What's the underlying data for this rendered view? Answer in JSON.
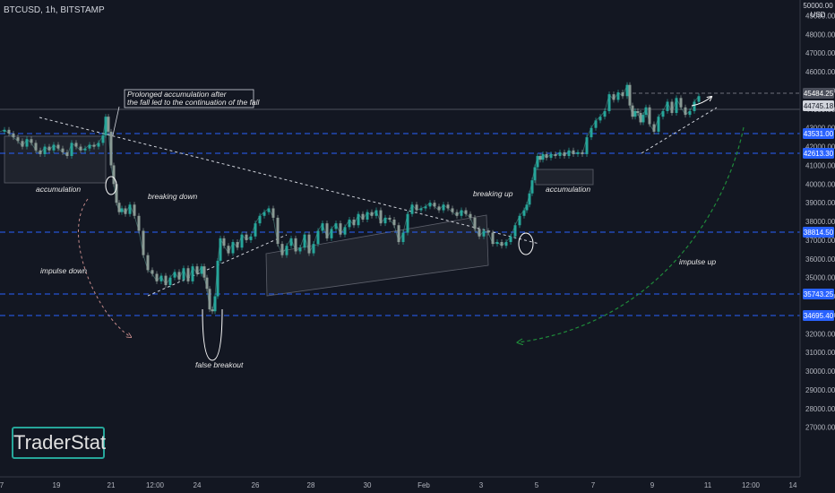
{
  "header": {
    "symbol": "BTCUSD, 1h, BITSTAMP",
    "currency_line1": "50000.00",
    "currency_line2": "USD"
  },
  "brand": {
    "text": "TraderStat"
  },
  "chart_data": {
    "type": "line",
    "xlabel": "",
    "ylabel": "",
    "ylim": [
      27000,
      50000
    ],
    "grid": false,
    "y_ticks": [
      49000,
      48000,
      47000,
      46000,
      45000,
      44000,
      43000,
      42000,
      41000,
      40000,
      39000,
      38000,
      37000,
      36000,
      35000,
      34000,
      33000,
      32000,
      31000,
      30000,
      29000,
      28000,
      27000
    ],
    "x_ticks": [
      "7",
      "19",
      "21",
      "12:00",
      "24",
      "26",
      "28",
      "30",
      "Feb",
      "3",
      "5",
      "7",
      "9",
      "11",
      "12:00",
      "14"
    ],
    "series": [
      {
        "x": [
          0,
          5,
          10,
          15,
          20,
          25,
          30,
          35,
          40,
          45,
          50,
          55,
          60,
          65,
          70,
          75,
          80,
          85,
          90,
          95,
          100,
          105,
          110,
          115,
          118,
          121,
          124,
          127,
          130,
          133,
          136,
          140,
          145,
          150,
          155,
          160,
          165,
          170,
          175,
          180,
          185,
          190,
          195,
          200,
          205,
          210,
          215,
          220,
          225,
          228,
          231,
          234,
          237,
          240,
          243,
          246,
          250,
          255,
          260,
          265,
          270,
          275,
          280,
          285,
          290,
          295,
          300,
          305,
          310,
          315,
          320,
          325,
          330,
          335,
          340,
          345,
          350,
          355,
          360,
          365,
          370,
          375,
          380,
          385,
          390,
          395,
          400,
          405,
          410,
          415,
          420,
          425,
          430,
          435,
          440,
          445,
          450,
          455,
          460,
          465,
          470,
          475,
          480,
          485,
          490,
          495,
          500,
          505,
          510,
          515,
          520,
          525,
          530,
          535,
          540,
          545,
          550,
          555,
          560,
          565,
          570,
          575,
          580,
          585,
          588,
          591,
          594,
          597,
          600,
          603,
          606,
          610,
          615,
          620,
          625,
          630,
          635,
          640,
          645,
          650,
          655,
          660,
          665,
          670,
          675,
          680,
          685,
          690,
          695,
          700,
          703,
          706,
          709,
          712,
          715,
          718,
          721,
          725,
          730,
          735,
          740,
          745,
          750,
          755,
          760,
          765,
          770,
          775,
          780
        ],
        "y": [
          42800,
          42900,
          42700,
          42500,
          42300,
          42000,
          42400,
          42200,
          41800,
          41600,
          42000,
          41800,
          42100,
          41900,
          41700,
          41500,
          42200,
          42000,
          41800,
          41900,
          42100,
          42000,
          42200,
          42600,
          43600,
          42800,
          41000,
          40000,
          39000,
          38500,
          38700,
          38400,
          38900,
          38300,
          37500,
          36200,
          35400,
          35200,
          34800,
          35100,
          34600,
          35000,
          35300,
          34900,
          35500,
          34800,
          35600,
          35200,
          35600,
          35000,
          34400,
          33300,
          33200,
          34000,
          35900,
          37100,
          36700,
          36300,
          36900,
          36600,
          37300,
          37000,
          37200,
          37900,
          38300,
          38500,
          38700,
          38200,
          36800,
          36200,
          36700,
          37100,
          36400,
          36600,
          37300,
          36300,
          36800,
          37500,
          37900,
          37100,
          37600,
          37900,
          37300,
          37700,
          38100,
          37800,
          38400,
          38100,
          38500,
          38300,
          38600,
          37900,
          38200,
          38100,
          37800,
          36900,
          37400,
          38400,
          38900,
          38600,
          38700,
          38800,
          39000,
          38800,
          38600,
          38900,
          38700,
          38500,
          38300,
          38600,
          38400,
          38200,
          37600,
          37200,
          37500,
          37400,
          36800,
          36900,
          36700,
          36900,
          37200,
          37800,
          38300,
          38600,
          38900,
          39500,
          40200,
          40900,
          41500,
          41300,
          41600,
          41400,
          41600,
          41500,
          41700,
          41500,
          41800,
          41600,
          41700,
          41600,
          42500,
          43000,
          43400,
          43600,
          43900,
          44800,
          44500,
          44900,
          44700,
          45300,
          44200,
          43600,
          43900,
          43800,
          43300,
          43700,
          44100,
          43200,
          42800,
          43600,
          43900,
          44400,
          43800,
          44600,
          44100,
          43700,
          43900,
          44400,
          44700
        ]
      }
    ],
    "price_labels": [
      {
        "value": "45484.25",
        "type": "gray"
      },
      {
        "value": "44745.18",
        "type": "light"
      },
      {
        "value": "43531.00",
        "type": "blue"
      },
      {
        "value": "42613.30",
        "type": "blue"
      },
      {
        "value": "38814.50",
        "type": "blue"
      },
      {
        "value": "35743.25",
        "type": "blue"
      },
      {
        "value": "34695.40",
        "type": "blue"
      }
    ],
    "annotations": {
      "prolonged_line1": "Prolonged accumulation after",
      "prolonged_line2": "the fall led to the continuation of the fall",
      "accumulation_left": "accumulation",
      "breaking_down": "breaking down",
      "impulse_down": "impulse down",
      "false_breakout": "false breakout",
      "breaking_up": "breaking up",
      "accumulation_right": "accumulation",
      "impulse_up": "impulse up"
    },
    "colors": {
      "background": "#131722",
      "up": "#26a69a",
      "down": "#8a9a94",
      "level": "#2962ff",
      "label_blue": "#2962ff",
      "label_gray": "#4a4e5a",
      "impulse_down_arrow": "#c48a8a",
      "impulse_up_arrow": "#1f8a3a"
    }
  }
}
